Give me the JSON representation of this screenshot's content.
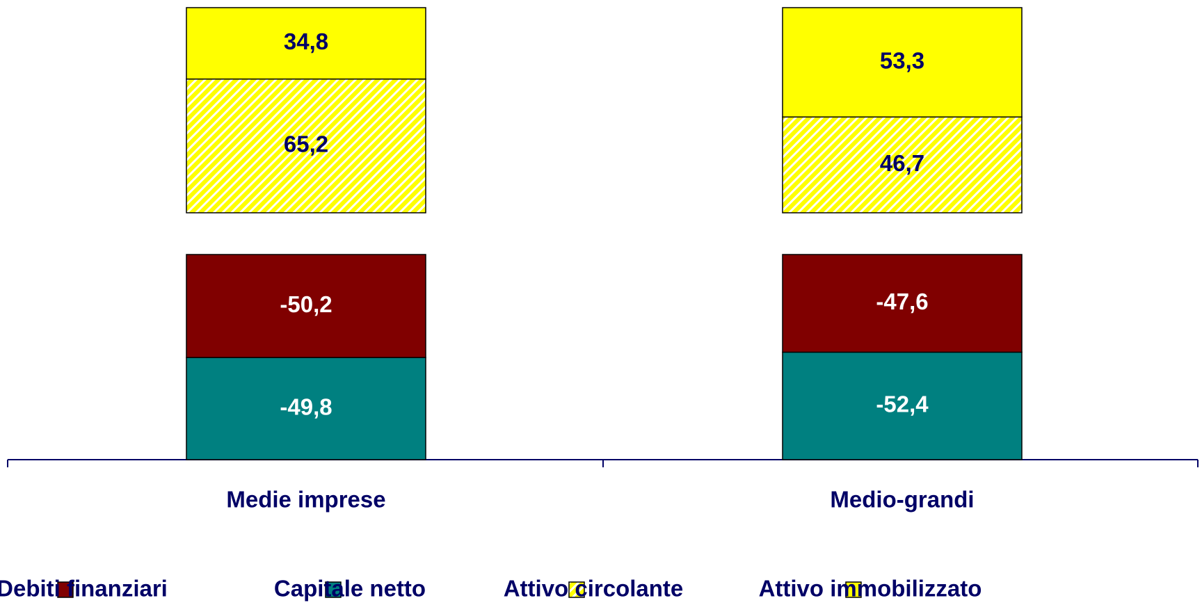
{
  "chart_data": {
    "type": "stacked_bar",
    "categories": [
      "Medie imprese",
      "Medio-grandi"
    ],
    "series": [
      {
        "name": "Debiti finanziari",
        "color": "#800000",
        "values": [
          -50.2,
          -47.6
        ],
        "value_labels": [
          "-50,2",
          "-47,6"
        ]
      },
      {
        "name": "Capitale netto",
        "color": "#008080",
        "values": [
          -49.8,
          -52.4
        ],
        "value_labels": [
          "-49,8",
          "-52,4"
        ]
      },
      {
        "name": "Attivo circolante",
        "color": "#ffff00",
        "pattern": "hatch",
        "values": [
          65.2,
          46.7
        ],
        "value_labels": [
          "65,2",
          "46,7"
        ]
      },
      {
        "name": "Attivo immobilizzato",
        "color": "#ffff00",
        "values": [
          34.8,
          53.3
        ],
        "value_labels": [
          "34,8",
          "53,3"
        ]
      }
    ],
    "legend": "bottom"
  }
}
